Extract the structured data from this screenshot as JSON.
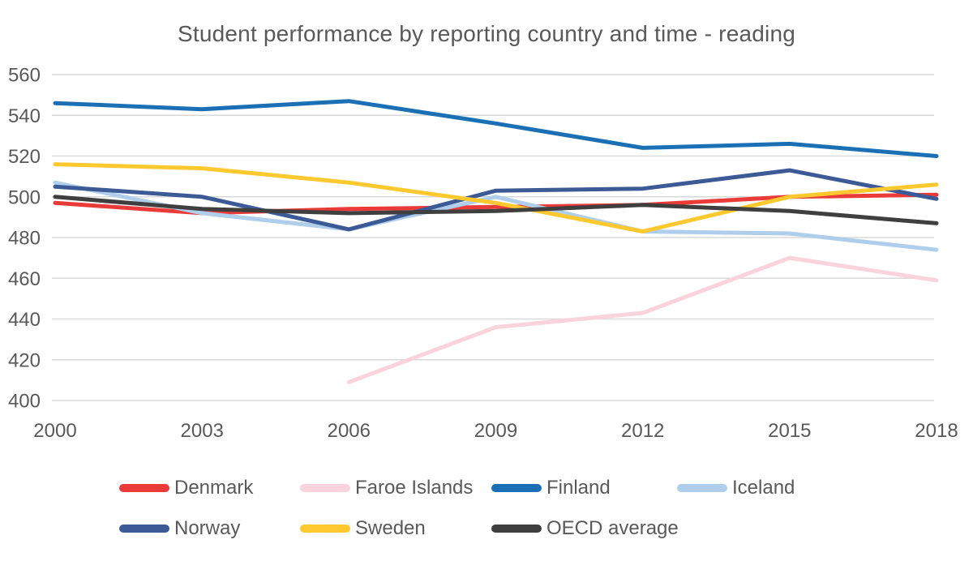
{
  "chart_data": {
    "type": "line",
    "title": "Student performance by reporting country and time - reading",
    "categories": [
      "2000",
      "2003",
      "2006",
      "2009",
      "2012",
      "2015",
      "2018"
    ],
    "y_ticks": [
      560,
      540,
      520,
      500,
      480,
      460,
      440,
      420,
      400
    ],
    "ylim": [
      400,
      560
    ],
    "grid": true,
    "legend_position": "bottom",
    "text_color": "#595959",
    "gridline_color": "#D9D9D9",
    "series": [
      {
        "name": "Denmark",
        "color": "#EA3B38",
        "values": [
          497,
          492,
          494,
          495,
          496,
          500,
          501
        ]
      },
      {
        "name": "Faroe Islands",
        "color": "#FBD3DC",
        "values": [
          null,
          null,
          409,
          436,
          443,
          470,
          459
        ]
      },
      {
        "name": "Finland",
        "color": "#1B6FB5",
        "values": [
          546,
          543,
          547,
          536,
          524,
          526,
          520
        ]
      },
      {
        "name": "Iceland",
        "color": "#AFCEEB",
        "values": [
          507,
          492,
          484,
          500,
          483,
          482,
          474
        ]
      },
      {
        "name": "Norway",
        "color": "#3C5A96",
        "values": [
          505,
          500,
          484,
          503,
          504,
          513,
          499
        ]
      },
      {
        "name": "Sweden",
        "color": "#FEC92F",
        "values": [
          516,
          514,
          507,
          497,
          483,
          500,
          506
        ]
      },
      {
        "name": "OECD average",
        "color": "#3F3F3F",
        "values": [
          500,
          494,
          492,
          493,
          496,
          493,
          487
        ]
      }
    ]
  }
}
